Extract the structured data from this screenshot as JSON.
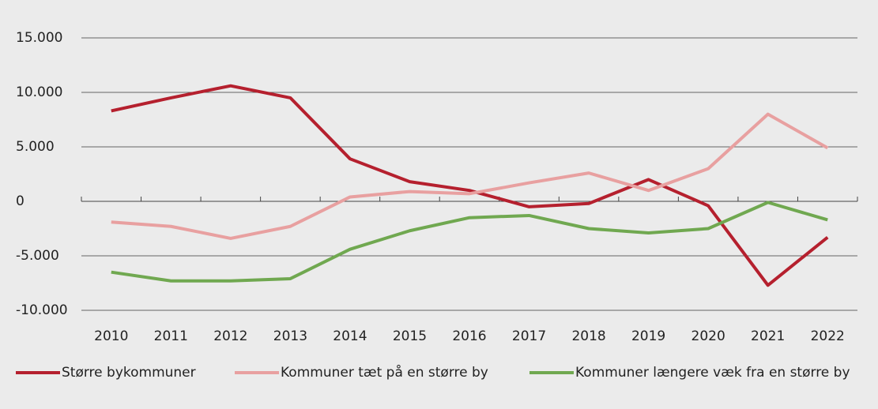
{
  "chart_data": {
    "type": "line",
    "categories": [
      "2010",
      "2011",
      "2012",
      "2013",
      "2014",
      "2015",
      "2016",
      "2017",
      "2018",
      "2019",
      "2020",
      "2021",
      "2022"
    ],
    "series": [
      {
        "name": "Større bykommuner",
        "color": "#b5202e",
        "values": [
          8300,
          9500,
          10600,
          9500,
          3900,
          1800,
          1000,
          -500,
          -200,
          2000,
          -400,
          -7700,
          -3300
        ]
      },
      {
        "name": "Kommuner tæt på en større by",
        "color": "#e8a0a0",
        "values": [
          -1900,
          -2300,
          -3400,
          -2300,
          400,
          900,
          700,
          1700,
          2600,
          1000,
          3000,
          8000,
          4900
        ]
      },
      {
        "name": "Kommuner længere væk fra en større by",
        "color": "#70a850",
        "values": [
          -6500,
          -7300,
          -7300,
          -7100,
          -4400,
          -2700,
          -1500,
          -1300,
          -2500,
          -2900,
          -2500,
          -100,
          -1700
        ]
      }
    ],
    "ylim": [
      -10000,
      15000
    ],
    "yticks": [
      {
        "value": -10000,
        "label": "-10.000"
      },
      {
        "value": -5000,
        "label": "-5.000"
      },
      0,
      {
        "value": 5000,
        "label": "5.000"
      },
      {
        "value": 10000,
        "label": "10.000"
      },
      {
        "value": 15000,
        "label": "15.000"
      }
    ],
    "grid": true,
    "legend": "bottom"
  }
}
